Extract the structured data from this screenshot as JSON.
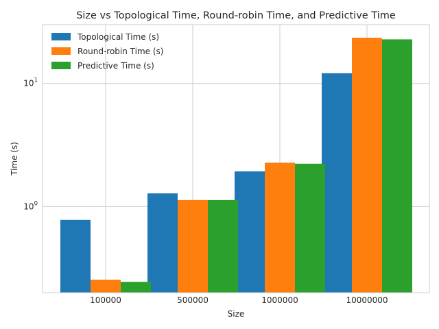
{
  "chart_data": {
    "type": "bar",
    "title": "Size vs Topological Time, Round-robin Time, and Predictive Time",
    "xlabel": "Size",
    "ylabel": "Time (s)",
    "yscale": "log",
    "ylim": [
      0.2,
      30
    ],
    "grid": true,
    "legend_position": "top-left",
    "categories": [
      "100000",
      "500000",
      "1000000",
      "10000000"
    ],
    "y_tick_labels": [
      {
        "value": 1,
        "base": "10",
        "exp": "0"
      },
      {
        "value": 10,
        "base": "10",
        "exp": "1"
      }
    ],
    "series": [
      {
        "name": "Topological Time (s)",
        "color": "#1f77b4",
        "values": [
          0.78,
          1.28,
          1.93,
          12.1
        ]
      },
      {
        "name": "Round-robin Time (s)",
        "color": "#ff7f0e",
        "values": [
          0.255,
          1.13,
          2.27,
          23.5
        ]
      },
      {
        "name": "Predictive Time (s)",
        "color": "#2ca02c",
        "values": [
          0.245,
          1.13,
          2.23,
          22.8
        ]
      }
    ]
  }
}
